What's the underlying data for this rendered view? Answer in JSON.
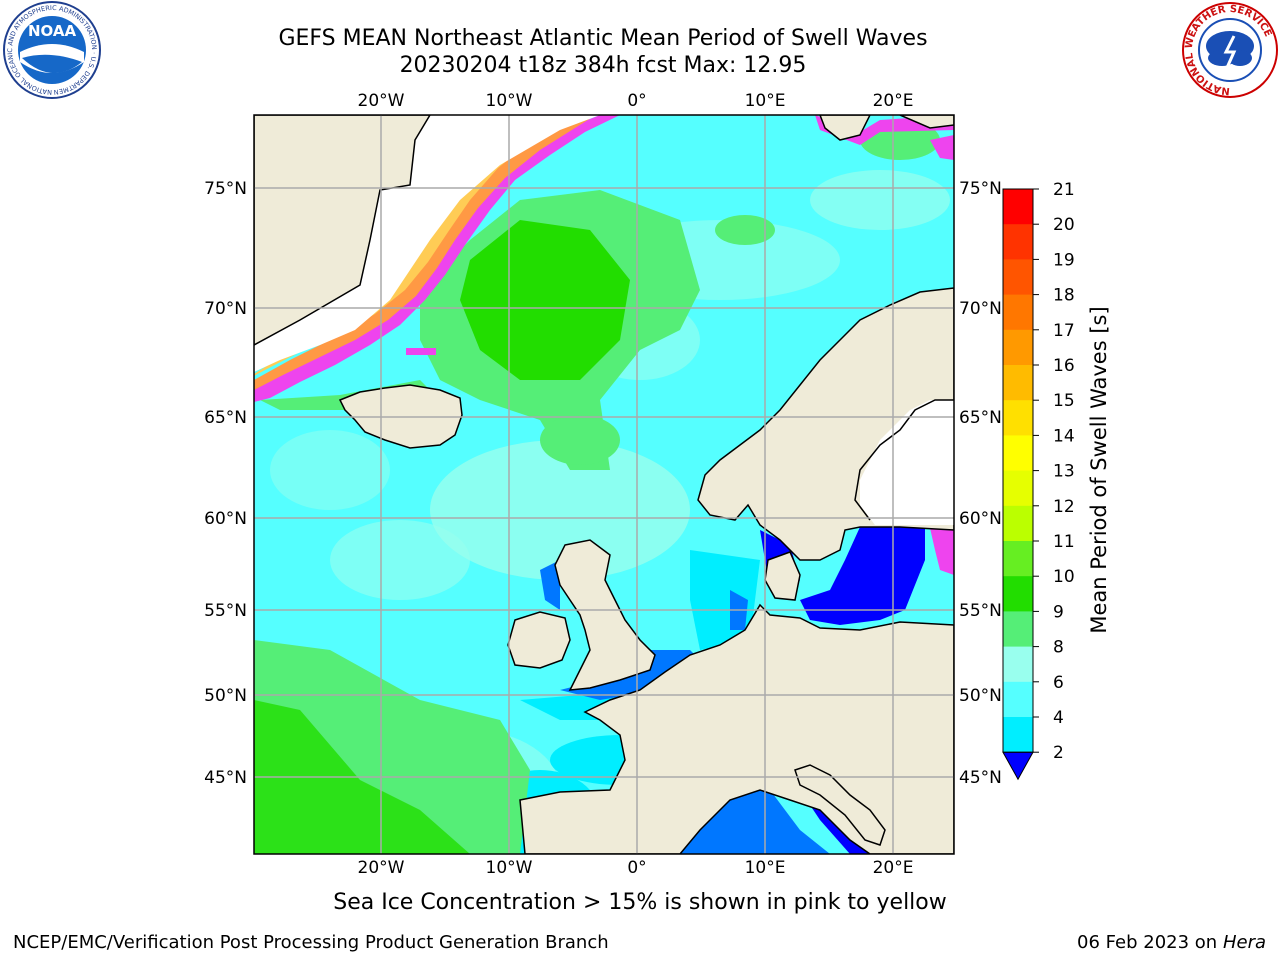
{
  "header": {
    "title_line1": "GEFS MEAN Northeast Atlantic Mean Period of Swell Waves",
    "title_line2": "20230204 t18z 384h fcst   Max: 12.95"
  },
  "logos": {
    "left": {
      "text": "NOAA",
      "ring_text": "NATIONAL OCEANIC AND ATMOSPHERIC ADMINISTRATION · U.S. DEPARTMENT OF COMMERCE"
    },
    "right": {
      "ring_text": "NATIONAL WEATHER SERVICE"
    }
  },
  "map": {
    "lon_labels_top": [
      "20°W",
      "10°W",
      "0°",
      "10°E",
      "20°E"
    ],
    "lon_labels_bottom": [
      "20°W",
      "10°W",
      "0°",
      "10°E",
      "20°E"
    ],
    "lat_labels_left": [
      "75°N",
      "70°N",
      "65°N",
      "60°N",
      "55°N",
      "50°N",
      "45°N"
    ],
    "lat_labels_right": [
      "75°N",
      "70°N",
      "65°N",
      "60°N",
      "55°N",
      "50°N",
      "45°N"
    ]
  },
  "colorbar": {
    "label": "Mean Period of Swell Waves [s]",
    "ticks": [
      "21",
      "20",
      "19",
      "18",
      "17",
      "16",
      "15",
      "14",
      "13",
      "12",
      "11",
      "10",
      "9",
      "8",
      "6",
      "4",
      "2"
    ],
    "colors": [
      "#ff0000",
      "#ff3300",
      "#ff5500",
      "#ff7700",
      "#ff9900",
      "#ffbb00",
      "#ffe000",
      "#ffff00",
      "#e6ff00",
      "#bbff00",
      "#66ee22",
      "#22dd00",
      "#55ee77",
      "#99ffee",
      "#55ffff",
      "#00eeff",
      "#0077ff",
      "#0000ff"
    ]
  },
  "note": "Sea Ice Concentration > 15% is shown in pink to yellow",
  "footer": {
    "left": "NCEP/EMC/Verification Post Processing Product Generation Branch",
    "right_date": "06 Feb 2023 on",
    "right_machine": "Hera"
  }
}
